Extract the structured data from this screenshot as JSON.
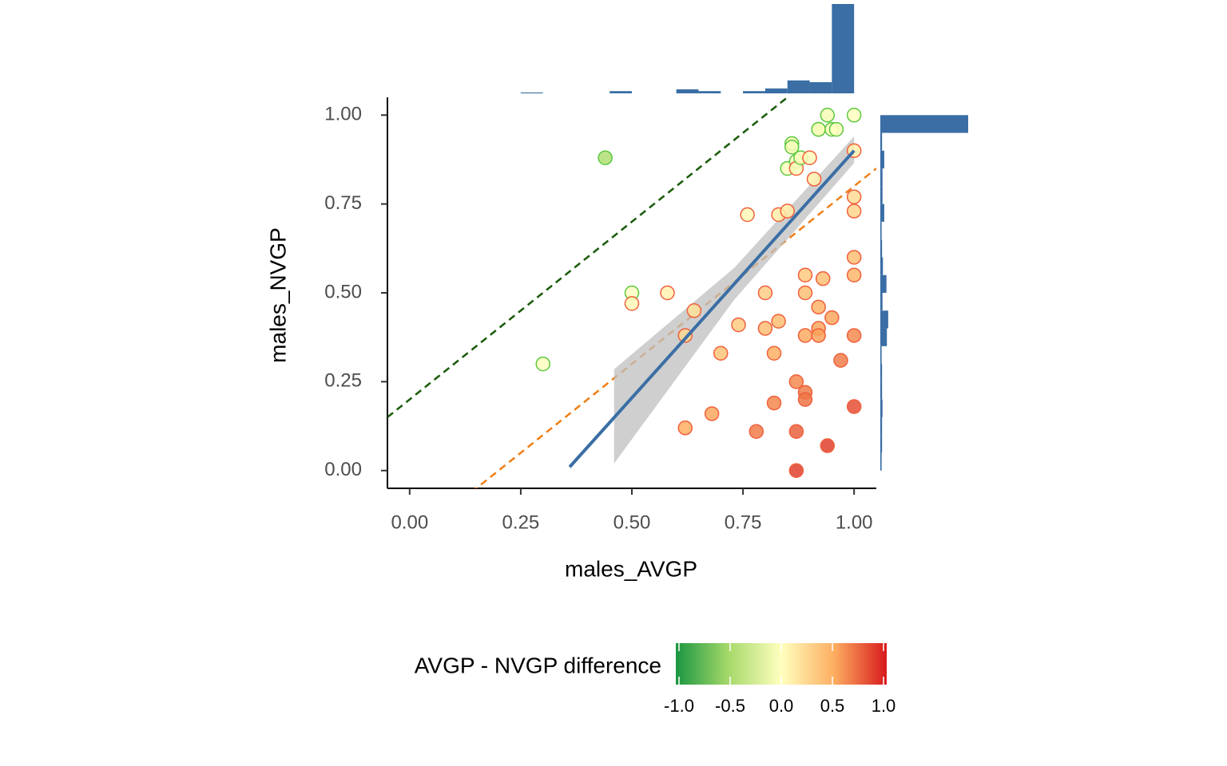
{
  "chart_data": {
    "type": "scatter",
    "x_label": "males_AVGP",
    "y_label": "males_NVGP",
    "x": [
      0.44,
      0.3,
      0.5,
      0.5,
      0.58,
      0.64,
      0.62,
      0.62,
      0.68,
      0.7,
      0.74,
      0.76,
      0.78,
      0.8,
      0.8,
      0.82,
      0.82,
      0.83,
      0.83,
      0.85,
      0.85,
      0.86,
      0.86,
      0.87,
      0.87,
      0.87,
      0.87,
      0.87,
      0.88,
      0.89,
      0.89,
      0.89,
      0.89,
      0.9,
      0.89,
      0.91,
      0.92,
      0.92,
      0.92,
      0.92,
      0.93,
      0.92,
      0.94,
      0.94,
      0.95,
      0.96,
      0.95,
      0.97,
      1.0,
      1.0,
      1.0,
      1.0,
      1.0,
      1.0,
      1.0,
      1.0
    ],
    "y": [
      0.88,
      0.3,
      0.5,
      0.47,
      0.5,
      0.45,
      0.38,
      0.12,
      0.16,
      0.33,
      0.41,
      0.72,
      0.11,
      0.5,
      0.4,
      0.33,
      0.19,
      0.42,
      0.72,
      0.73,
      0.85,
      0.92,
      0.91,
      0.87,
      0.85,
      0.0,
      0.25,
      0.11,
      0.88,
      0.22,
      0.2,
      0.55,
      0.5,
      0.88,
      0.38,
      0.82,
      0.96,
      0.4,
      0.38,
      0.46,
      0.54,
      0.96,
      1.0,
      0.07,
      0.96,
      0.96,
      0.43,
      0.31,
      1.0,
      0.9,
      0.77,
      0.73,
      0.6,
      0.55,
      0.38,
      0.18
    ],
    "xlim": [
      -0.05,
      1.05
    ],
    "ylim": [
      -0.05,
      1.05
    ],
    "xticks": [
      {
        "value": 0,
        "label": "0.00"
      },
      {
        "value": 0.25,
        "label": "0.25"
      },
      {
        "value": 0.5,
        "label": "0.50"
      },
      {
        "value": 0.75,
        "label": "0.75"
      },
      {
        "value": 1,
        "label": "1.00"
      }
    ],
    "yticks": [
      {
        "value": 0,
        "label": "0.00"
      },
      {
        "value": 0.25,
        "label": "0.25"
      },
      {
        "value": 0.5,
        "label": "0.50"
      },
      {
        "value": 0.75,
        "label": "0.75"
      },
      {
        "value": 1,
        "label": "1.00"
      }
    ],
    "fit": {
      "x": [
        0.36,
        1.0
      ],
      "y": [
        0.01,
        0.9
      ],
      "color": "#3a6ea5"
    },
    "band": {
      "x": [
        0.46,
        0.73,
        1.0
      ],
      "lower": [
        0.02,
        0.48,
        0.865
      ],
      "upper": [
        0.285,
        0.57,
        0.94
      ],
      "color": "#bfbfbf"
    },
    "reference_lines": [
      {
        "intercept": 0.2,
        "slope": 1,
        "color": "#1a5c0a"
      },
      {
        "intercept": -0.2,
        "slope": 1,
        "color": "#f07f18"
      }
    ],
    "x_hist": {
      "bins": [
        0.25,
        0.3,
        0.35,
        0.4,
        0.45,
        0.5,
        0.55,
        0.6,
        0.65,
        0.7,
        0.75,
        0.8,
        0.85,
        0.9,
        0.95,
        1.0
      ],
      "counts": [
        0.2,
        0,
        0,
        0,
        0.5,
        0,
        0,
        0.9,
        0.5,
        0,
        0.5,
        1.1,
        2.9,
        2.5,
        20
      ],
      "color": "#3a6ea5"
    },
    "y_hist": {
      "bins": [
        0,
        0.05,
        0.1,
        0.15,
        0.2,
        0.25,
        0.3,
        0.35,
        0.4,
        0.45,
        0.5,
        0.55,
        0.6,
        0.65,
        0.7,
        0.75,
        0.8,
        0.85,
        0.9,
        0.95,
        1.0
      ],
      "counts": [
        0.3,
        0.4,
        0.4,
        0.5,
        0.4,
        0.4,
        0.3,
        1.5,
        1.8,
        0.5,
        1.4,
        0.6,
        0.4,
        0.3,
        0.9,
        0.5,
        0.5,
        0.9,
        0.4,
        20
      ],
      "color": "#3a6ea5"
    },
    "legend_title": "AVGP - NVGP difference",
    "colorscale": [
      "#1a9641",
      "#a6d96a",
      "#ffffbf",
      "#fdae61",
      "#d7191c"
    ],
    "clim": [
      -1,
      1
    ],
    "colorbar_ticks": [
      {
        "value": -1,
        "label": "-1.0"
      },
      {
        "value": -0.5,
        "label": "-0.5"
      },
      {
        "value": 0,
        "label": "0.0"
      },
      {
        "value": 0.5,
        "label": "0.5"
      },
      {
        "value": 1,
        "label": "1.0"
      }
    ],
    "point_stroke": {
      "negative": "#5cc940",
      "positive": "#f0603c"
    }
  }
}
